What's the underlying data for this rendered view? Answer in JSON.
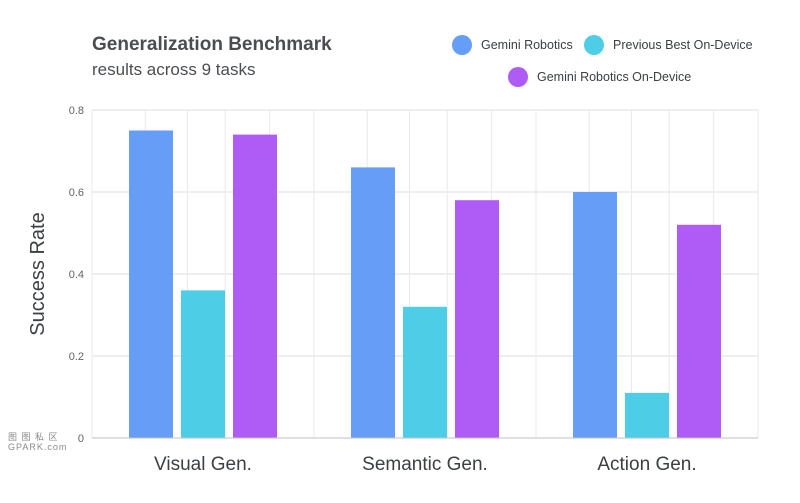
{
  "chart_data": {
    "type": "bar",
    "title": "Generalization Benchmark",
    "subtitle": "results across 9 tasks",
    "ylabel": "Success Rate",
    "xlabel": "",
    "ylim": [
      0,
      0.8
    ],
    "yticks": [
      "0",
      "0.2",
      "0.4",
      "0.6",
      "0.8"
    ],
    "grid": true,
    "legend_position": "top-right",
    "categories": [
      "Visual Gen.",
      "Semantic Gen.",
      "Action Gen."
    ],
    "series": [
      {
        "name": "Gemini Robotics",
        "color": "#669df6",
        "values": [
          0.75,
          0.66,
          0.6
        ]
      },
      {
        "name": "Previous Best On-Device",
        "color": "#4ecde6",
        "values": [
          0.36,
          0.32,
          0.11
        ]
      },
      {
        "name": "Gemini Robotics On-Device",
        "color": "#af5cf7",
        "values": [
          0.74,
          0.58,
          0.52
        ]
      }
    ]
  },
  "watermark": {
    "line1": "图 图 私 区",
    "line2": "GPARK.com"
  }
}
